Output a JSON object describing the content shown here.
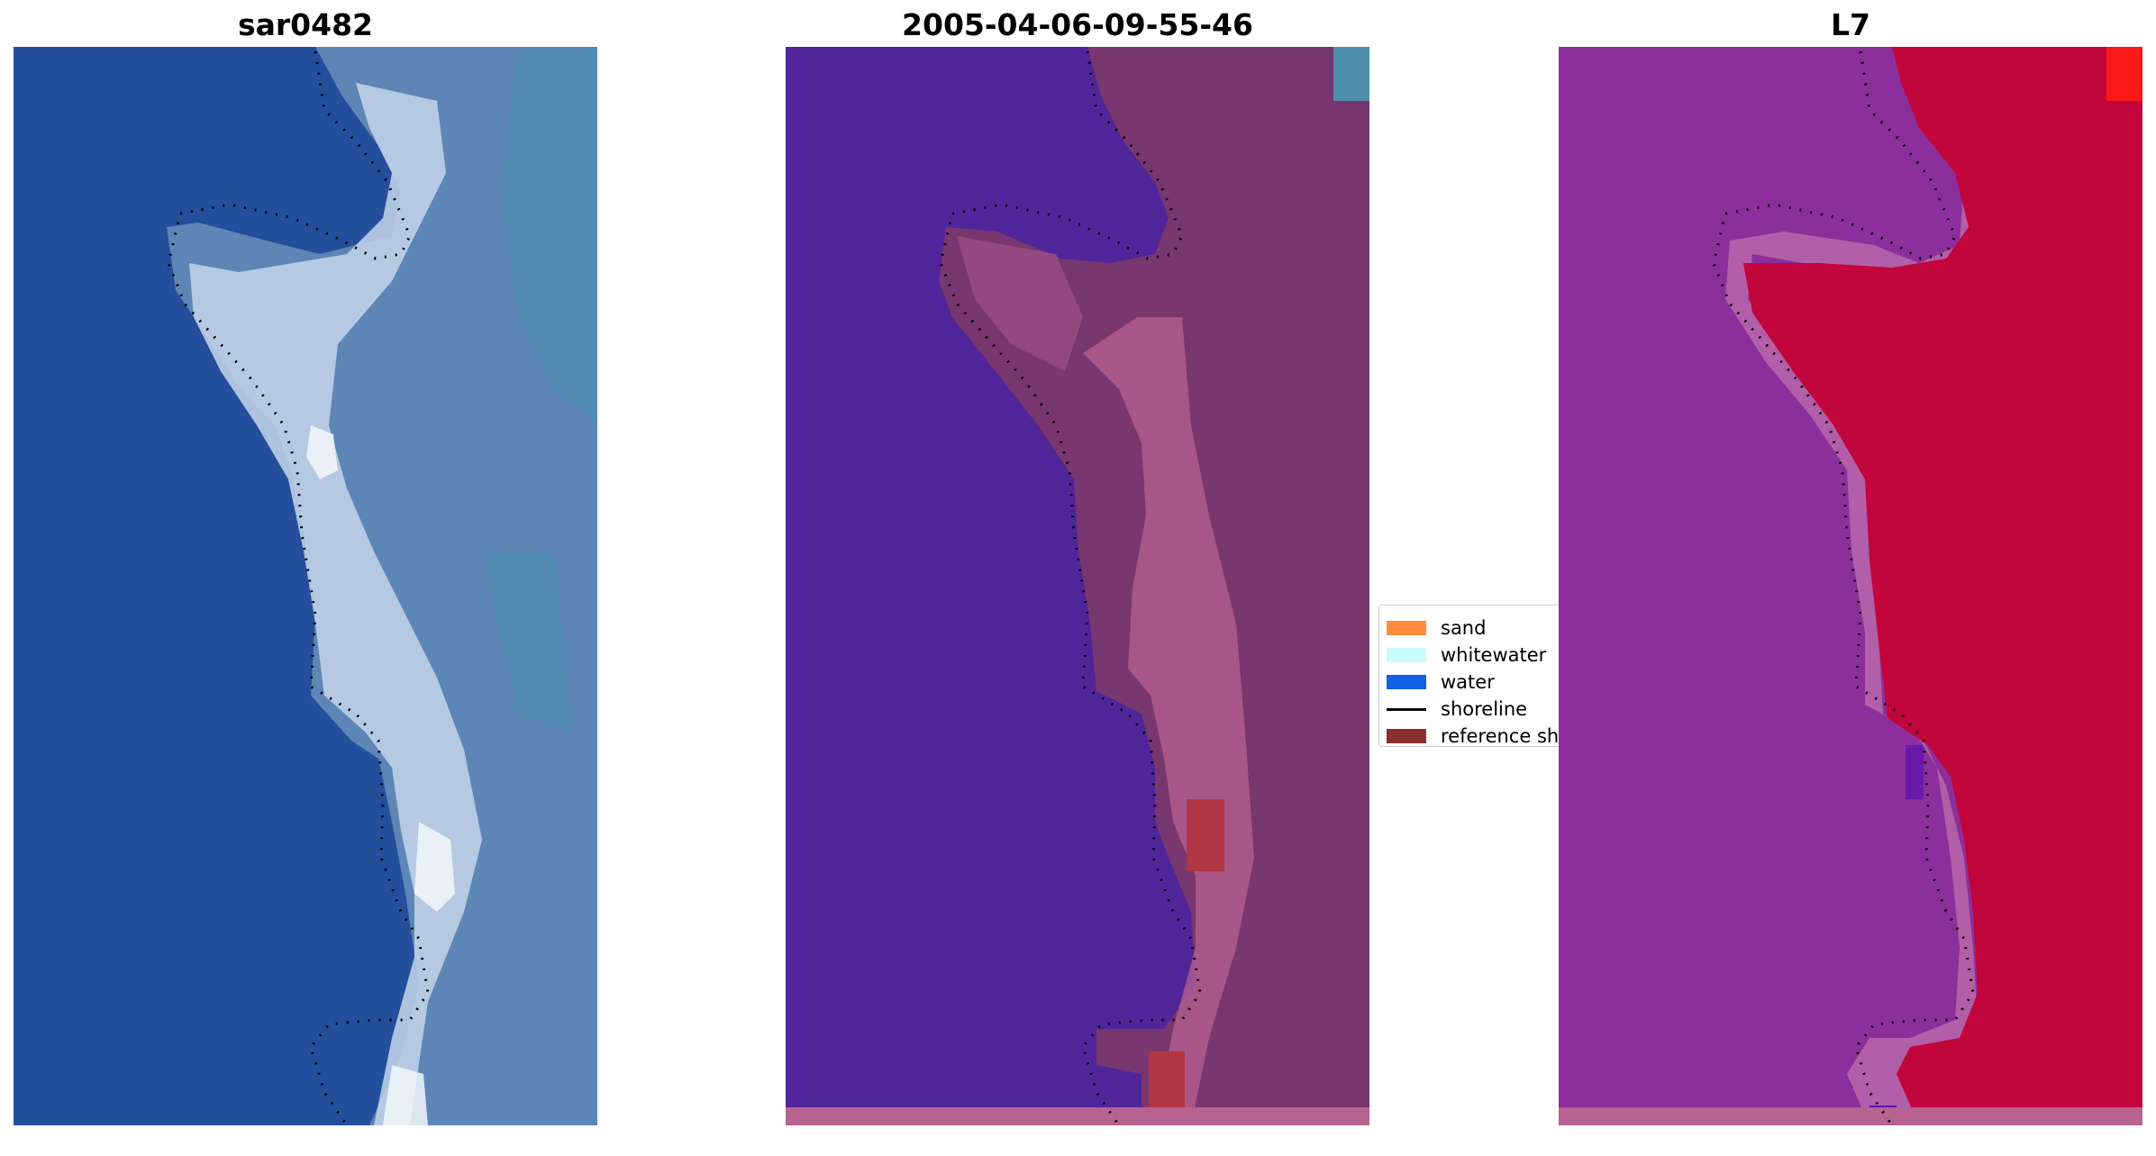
{
  "panels": [
    {
      "title": "sar0482"
    },
    {
      "title": "2005-04-06-09-55-46"
    },
    {
      "title": "L7"
    }
  ],
  "legend": {
    "items": [
      {
        "label": "sand",
        "color": "#ff8c3a",
        "kind": "patch"
      },
      {
        "label": "whitewater",
        "color": "#c8fcfc",
        "kind": "patch"
      },
      {
        "label": "water",
        "color": "#1060e8",
        "kind": "patch"
      },
      {
        "label": "shoreline",
        "color": "#000000",
        "kind": "line"
      },
      {
        "label": "reference shoreline",
        "color": "#8b2f2f",
        "kind": "patch"
      }
    ]
  },
  "colors": {
    "rgb_water": "#234f9c",
    "rgb_land": "#5d86b6",
    "rgb_beach": "#c9d8ea",
    "class_water": "#51259a",
    "class_land": "#78376f",
    "class_beach": "#b7628f",
    "class_sand": "#b13543",
    "ndwi_land": "#8c2f9c",
    "ndwi_land_edge": "#b35ea8",
    "ndwi_water": "#c1063c",
    "ndwi_high": "#ff1a1a"
  }
}
